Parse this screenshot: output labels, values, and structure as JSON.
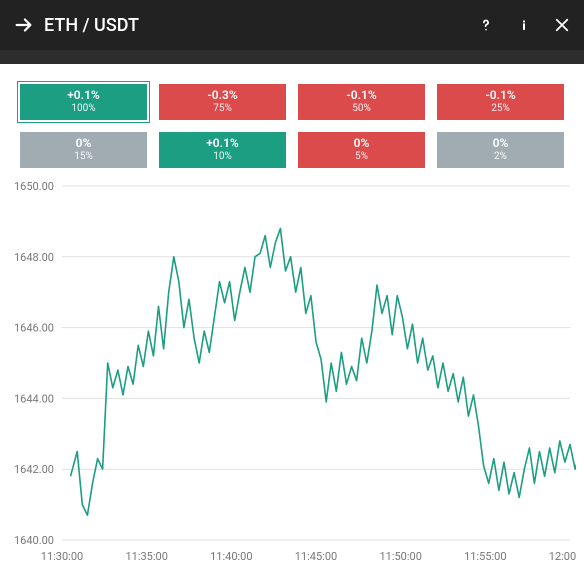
{
  "header": {
    "title": "ETH / USDT"
  },
  "tiles": [
    {
      "pct": "+0.1%",
      "sub": "100%",
      "color": "green",
      "selected": true
    },
    {
      "pct": "-0.3%",
      "sub": "75%",
      "color": "red"
    },
    {
      "pct": "-0.1%",
      "sub": "50%",
      "color": "red"
    },
    {
      "pct": "-0.1%",
      "sub": "25%",
      "color": "red"
    },
    {
      "pct": "0%",
      "sub": "15%",
      "color": "gray"
    },
    {
      "pct": "+0.1%",
      "sub": "10%",
      "color": "green"
    },
    {
      "pct": "0%",
      "sub": "5%",
      "color": "red"
    },
    {
      "pct": "0%",
      "sub": "2%",
      "color": "gray"
    }
  ],
  "chart": {
    "type": "line",
    "line_color": "#1b9e82",
    "line_width": 1.6,
    "background_color": "#ffffff",
    "grid_color": "#e0e0e0",
    "axis_label_color": "#777777",
    "axis_label_fontsize": 11,
    "ylim": [
      1640,
      1650
    ],
    "ytick_step": 2,
    "yticks": [
      "1640.00",
      "1642.00",
      "1644.00",
      "1646.00",
      "1648.00",
      "1650.00"
    ],
    "xlim": [
      0,
      30
    ],
    "xticks": [
      {
        "t": 0,
        "label": "11:30:00"
      },
      {
        "t": 5,
        "label": "11:35:00"
      },
      {
        "t": 10,
        "label": "11:40:00"
      },
      {
        "t": 15,
        "label": "11:45:00"
      },
      {
        "t": 20,
        "label": "11:50:00"
      },
      {
        "t": 25,
        "label": "11:55:00"
      },
      {
        "t": 30,
        "label": "12:00:00"
      }
    ],
    "series": [
      {
        "t": 0.5,
        "v": 1641.8
      },
      {
        "t": 0.9,
        "v": 1642.5
      },
      {
        "t": 1.2,
        "v": 1641.0
      },
      {
        "t": 1.5,
        "v": 1640.7
      },
      {
        "t": 1.8,
        "v": 1641.6
      },
      {
        "t": 2.1,
        "v": 1642.3
      },
      {
        "t": 2.4,
        "v": 1642.0
      },
      {
        "t": 2.7,
        "v": 1645.0
      },
      {
        "t": 3.0,
        "v": 1644.3
      },
      {
        "t": 3.3,
        "v": 1644.8
      },
      {
        "t": 3.6,
        "v": 1644.1
      },
      {
        "t": 3.9,
        "v": 1644.9
      },
      {
        "t": 4.2,
        "v": 1644.4
      },
      {
        "t": 4.5,
        "v": 1645.5
      },
      {
        "t": 4.8,
        "v": 1644.9
      },
      {
        "t": 5.1,
        "v": 1645.9
      },
      {
        "t": 5.4,
        "v": 1645.2
      },
      {
        "t": 5.7,
        "v": 1646.6
      },
      {
        "t": 6.0,
        "v": 1645.4
      },
      {
        "t": 6.3,
        "v": 1647.0
      },
      {
        "t": 6.6,
        "v": 1648.0
      },
      {
        "t": 6.9,
        "v": 1647.3
      },
      {
        "t": 7.2,
        "v": 1646.0
      },
      {
        "t": 7.5,
        "v": 1646.8
      },
      {
        "t": 7.8,
        "v": 1645.7
      },
      {
        "t": 8.1,
        "v": 1645.0
      },
      {
        "t": 8.4,
        "v": 1645.9
      },
      {
        "t": 8.7,
        "v": 1645.3
      },
      {
        "t": 9.0,
        "v": 1646.3
      },
      {
        "t": 9.3,
        "v": 1647.3
      },
      {
        "t": 9.6,
        "v": 1646.7
      },
      {
        "t": 9.9,
        "v": 1647.3
      },
      {
        "t": 10.2,
        "v": 1646.2
      },
      {
        "t": 10.5,
        "v": 1647.0
      },
      {
        "t": 10.8,
        "v": 1647.7
      },
      {
        "t": 11.1,
        "v": 1647.0
      },
      {
        "t": 11.4,
        "v": 1648.0
      },
      {
        "t": 11.7,
        "v": 1648.1
      },
      {
        "t": 12.0,
        "v": 1648.6
      },
      {
        "t": 12.3,
        "v": 1647.7
      },
      {
        "t": 12.6,
        "v": 1648.4
      },
      {
        "t": 12.9,
        "v": 1648.8
      },
      {
        "t": 13.2,
        "v": 1647.6
      },
      {
        "t": 13.5,
        "v": 1648.0
      },
      {
        "t": 13.8,
        "v": 1647.0
      },
      {
        "t": 14.1,
        "v": 1647.7
      },
      {
        "t": 14.4,
        "v": 1646.4
      },
      {
        "t": 14.7,
        "v": 1646.9
      },
      {
        "t": 15.0,
        "v": 1645.6
      },
      {
        "t": 15.3,
        "v": 1645.1
      },
      {
        "t": 15.6,
        "v": 1643.9
      },
      {
        "t": 15.9,
        "v": 1645.0
      },
      {
        "t": 16.2,
        "v": 1644.2
      },
      {
        "t": 16.5,
        "v": 1645.3
      },
      {
        "t": 16.8,
        "v": 1644.4
      },
      {
        "t": 17.1,
        "v": 1644.9
      },
      {
        "t": 17.4,
        "v": 1644.5
      },
      {
        "t": 17.7,
        "v": 1645.7
      },
      {
        "t": 18.0,
        "v": 1645.0
      },
      {
        "t": 18.3,
        "v": 1645.9
      },
      {
        "t": 18.6,
        "v": 1647.2
      },
      {
        "t": 18.9,
        "v": 1646.4
      },
      {
        "t": 19.2,
        "v": 1646.9
      },
      {
        "t": 19.5,
        "v": 1645.8
      },
      {
        "t": 19.8,
        "v": 1646.9
      },
      {
        "t": 20.1,
        "v": 1646.3
      },
      {
        "t": 20.4,
        "v": 1645.4
      },
      {
        "t": 20.7,
        "v": 1646.1
      },
      {
        "t": 21.0,
        "v": 1645.0
      },
      {
        "t": 21.3,
        "v": 1645.7
      },
      {
        "t": 21.6,
        "v": 1644.8
      },
      {
        "t": 21.9,
        "v": 1645.2
      },
      {
        "t": 22.2,
        "v": 1644.3
      },
      {
        "t": 22.5,
        "v": 1645.0
      },
      {
        "t": 22.8,
        "v": 1644.2
      },
      {
        "t": 23.1,
        "v": 1644.7
      },
      {
        "t": 23.4,
        "v": 1643.9
      },
      {
        "t": 23.7,
        "v": 1644.6
      },
      {
        "t": 24.0,
        "v": 1643.5
      },
      {
        "t": 24.3,
        "v": 1644.1
      },
      {
        "t": 24.6,
        "v": 1643.2
      },
      {
        "t": 24.9,
        "v": 1642.1
      },
      {
        "t": 25.2,
        "v": 1641.6
      },
      {
        "t": 25.5,
        "v": 1642.3
      },
      {
        "t": 25.8,
        "v": 1641.4
      },
      {
        "t": 26.1,
        "v": 1642.2
      },
      {
        "t": 26.4,
        "v": 1641.3
      },
      {
        "t": 26.7,
        "v": 1641.9
      },
      {
        "t": 27.0,
        "v": 1641.2
      },
      {
        "t": 27.3,
        "v": 1642.0
      },
      {
        "t": 27.6,
        "v": 1642.6
      },
      {
        "t": 27.9,
        "v": 1641.6
      },
      {
        "t": 28.2,
        "v": 1642.5
      },
      {
        "t": 28.5,
        "v": 1641.8
      },
      {
        "t": 28.8,
        "v": 1642.6
      },
      {
        "t": 29.1,
        "v": 1641.9
      },
      {
        "t": 29.4,
        "v": 1642.8
      },
      {
        "t": 29.7,
        "v": 1642.2
      },
      {
        "t": 30.0,
        "v": 1642.7
      },
      {
        "t": 30.3,
        "v": 1642.0
      },
      {
        "t": 30.6,
        "v": 1642.5
      }
    ]
  }
}
